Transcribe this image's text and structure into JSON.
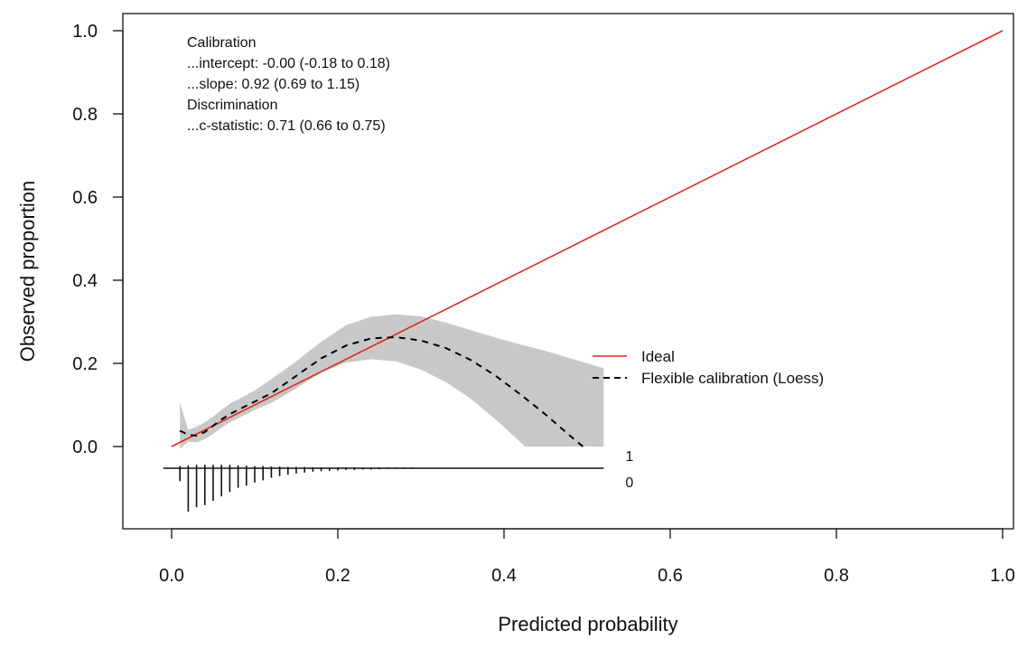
{
  "chart_data": {
    "type": "line",
    "title": "",
    "xlabel": "Predicted probability",
    "ylabel": "Observed proportion",
    "xlim": [
      -0.02,
      1.02
    ],
    "ylim": [
      -0.19,
      1.01
    ],
    "x_ticks": [
      0.0,
      0.2,
      0.4,
      0.6,
      0.8,
      1.0
    ],
    "x_tick_labels": [
      "0.0",
      "0.2",
      "0.4",
      "0.6",
      "0.8",
      "1.0"
    ],
    "y_ticks": [
      0.0,
      0.2,
      0.4,
      0.6,
      0.8,
      1.0
    ],
    "y_tick_labels": [
      "0.0",
      "0.2",
      "0.4",
      "0.6",
      "0.8",
      "1.0"
    ],
    "grid": false,
    "legend_position": "center-right",
    "annotations": [
      "Calibration",
      "...intercept: -0.00 (-0.18 to 0.18)",
      "...slope: 0.92 (0.69 to 1.15)",
      "Discrimination",
      "...c-statistic: 0.71 (0.66 to 0.75)"
    ],
    "series": [
      {
        "name": "Ideal",
        "style": "solid",
        "color": "#e8231e",
        "x": [
          0.0,
          1.0
        ],
        "y": [
          0.0,
          1.0
        ]
      },
      {
        "name": "Flexible calibration (Loess)",
        "style": "dashed",
        "color": "#000000",
        "x": [
          0.01,
          0.02,
          0.03,
          0.04,
          0.05,
          0.06,
          0.07,
          0.08,
          0.1,
          0.12,
          0.15,
          0.18,
          0.21,
          0.24,
          0.27,
          0.3,
          0.33,
          0.36,
          0.39,
          0.42,
          0.45,
          0.48,
          0.495
        ],
        "y": [
          0.038,
          0.028,
          0.026,
          0.035,
          0.05,
          0.065,
          0.078,
          0.088,
          0.108,
          0.128,
          0.17,
          0.212,
          0.243,
          0.26,
          0.263,
          0.255,
          0.237,
          0.208,
          0.17,
          0.125,
          0.077,
          0.025,
          0.0
        ]
      }
    ],
    "confidence_band": {
      "color": "#c8c8c8",
      "x": [
        0.01,
        0.02,
        0.03,
        0.04,
        0.05,
        0.06,
        0.07,
        0.08,
        0.1,
        0.12,
        0.15,
        0.18,
        0.21,
        0.24,
        0.27,
        0.3,
        0.33,
        0.36,
        0.39,
        0.42,
        0.425,
        0.45,
        0.48,
        0.52
      ],
      "upper": [
        0.105,
        0.04,
        0.048,
        0.058,
        0.072,
        0.088,
        0.103,
        0.113,
        0.135,
        0.162,
        0.205,
        0.252,
        0.292,
        0.312,
        0.318,
        0.313,
        0.298,
        0.28,
        0.262,
        0.245,
        0.243,
        0.23,
        0.212,
        0.188
      ],
      "lower": [
        -0.005,
        0.012,
        0.01,
        0.018,
        0.03,
        0.045,
        0.058,
        0.068,
        0.088,
        0.105,
        0.14,
        0.178,
        0.202,
        0.21,
        0.205,
        0.185,
        0.155,
        0.115,
        0.065,
        0.01,
        0.0,
        0.0,
        0.0,
        0.0
      ]
    },
    "spike_histogram": {
      "line_range": [
        -0.01,
        0.52
      ],
      "labels": [
        "1",
        "0"
      ],
      "x": [
        0.01,
        0.02,
        0.03,
        0.04,
        0.05,
        0.06,
        0.07,
        0.08,
        0.09,
        0.1,
        0.11,
        0.12,
        0.13,
        0.14,
        0.15,
        0.16,
        0.17,
        0.18,
        0.19,
        0.2,
        0.21,
        0.22,
        0.23,
        0.24,
        0.25,
        0.26,
        0.27,
        0.28,
        0.29,
        0.3,
        0.32,
        0.34,
        0.36,
        0.38,
        0.4,
        0.42,
        0.44,
        0.46,
        0.48,
        0.5
      ],
      "events": [
        0.005,
        0.007,
        0.008,
        0.008,
        0.008,
        0.008,
        0.008,
        0.007,
        0.006,
        0.005,
        0.005,
        0.004,
        0.004,
        0.003,
        0.003,
        0.003,
        0.002,
        0.002,
        0.002,
        0.002,
        0.002,
        0.002,
        0.0015,
        0.0015,
        0.0015,
        0.001,
        0.001,
        0.001,
        0.001,
        0.001,
        0.001,
        0.001,
        0.0008,
        0.0008,
        0.0008,
        0.0008,
        0.0007,
        0.0007,
        0.0007,
        0.0007
      ],
      "nonevents": [
        0.03,
        0.1,
        0.09,
        0.085,
        0.075,
        0.065,
        0.055,
        0.045,
        0.04,
        0.033,
        0.028,
        0.022,
        0.018,
        0.015,
        0.012,
        0.01,
        0.008,
        0.007,
        0.006,
        0.005,
        0.004,
        0.004,
        0.003,
        0.003,
        0.0025,
        0.002,
        0.002,
        0.002,
        0.0018,
        0.0015,
        0.0015,
        0.0012,
        0.0012,
        0.001,
        0.001,
        0.001,
        0.0008,
        0.0008,
        0.0008,
        0.0008
      ]
    }
  }
}
